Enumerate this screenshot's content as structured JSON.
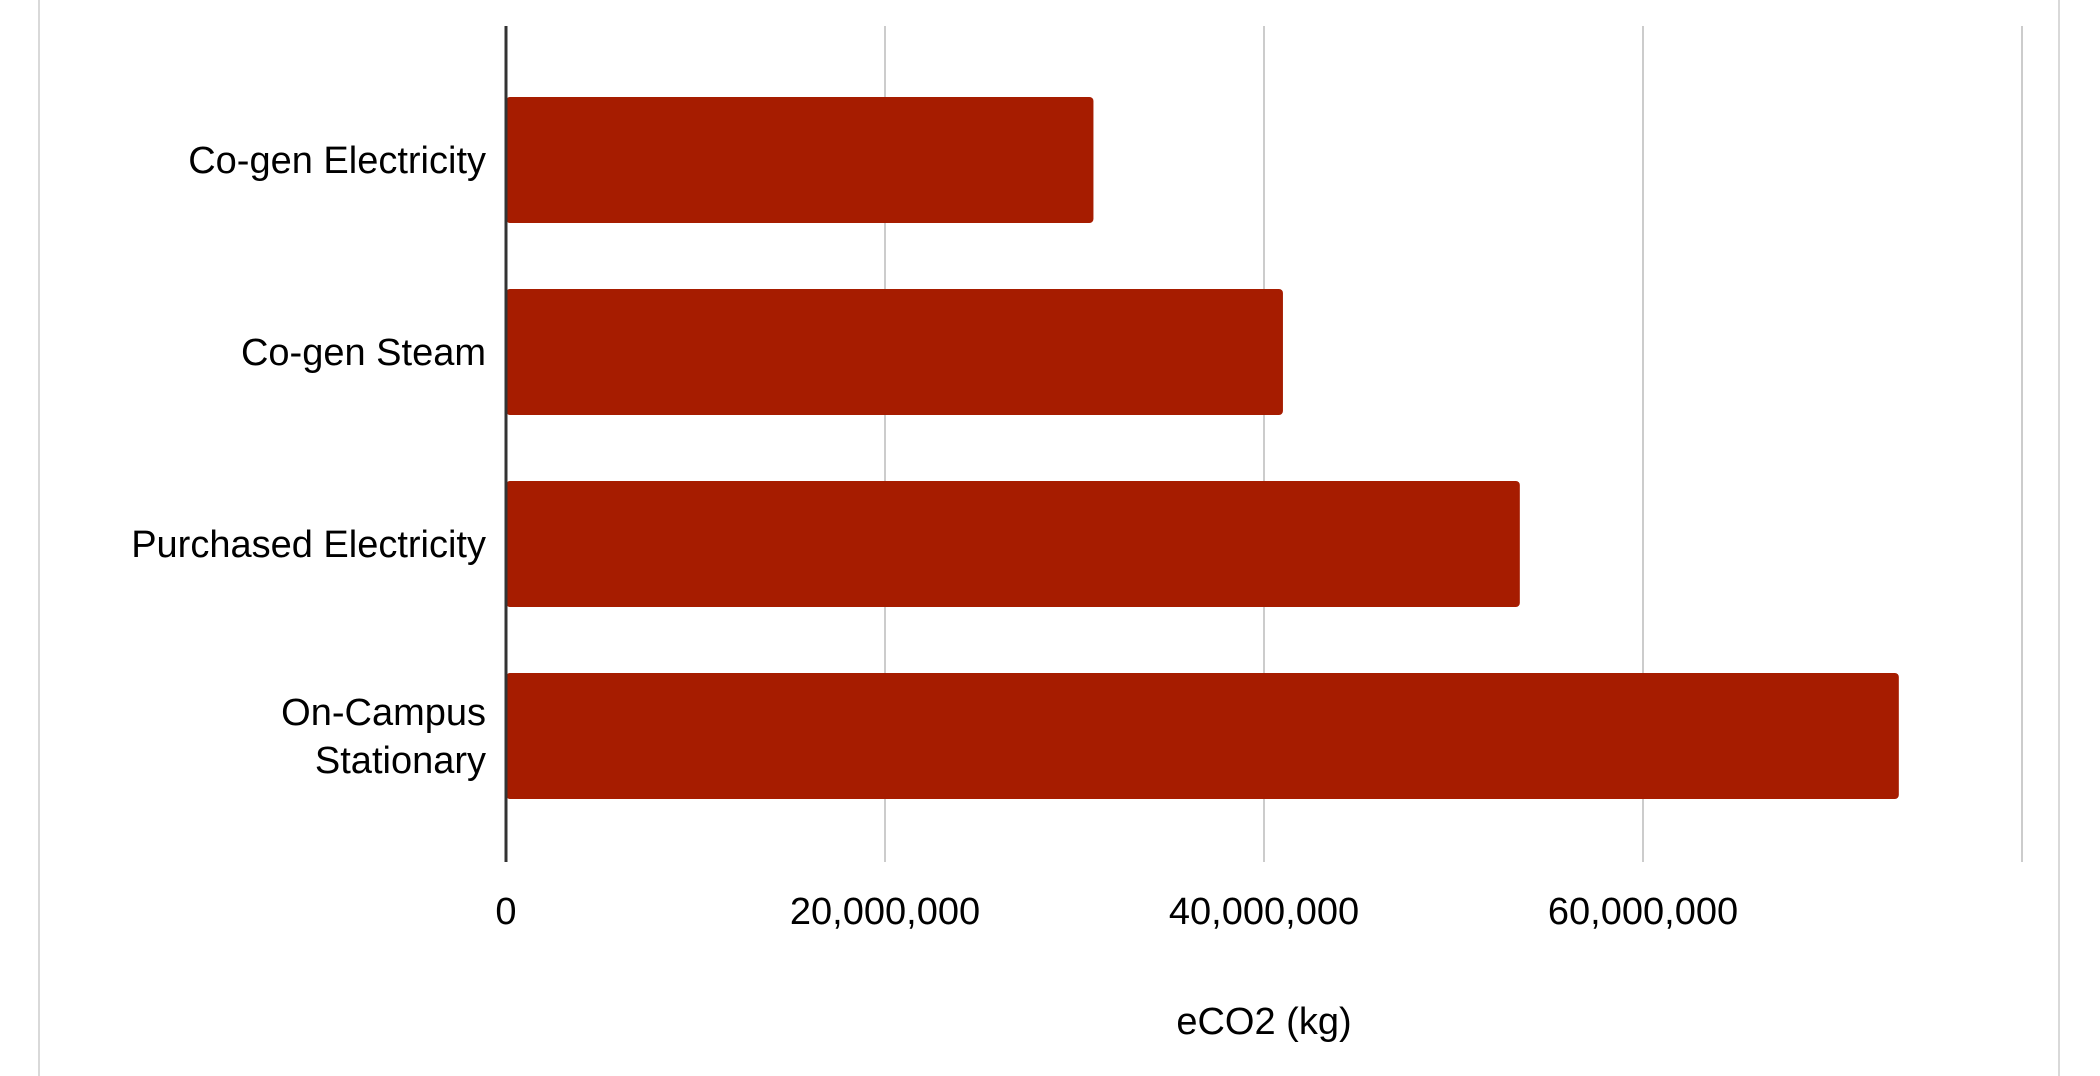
{
  "chart_data": {
    "type": "bar",
    "orientation": "horizontal",
    "categories": [
      "Co-gen Electricity",
      "Co-gen Steam",
      "Purchased Electricity",
      "On-Campus Stationary"
    ],
    "category_label_lines": [
      [
        "Co-gen Electricity"
      ],
      [
        "Co-gen Steam"
      ],
      [
        "Purchased Electricity"
      ],
      [
        "On-Campus",
        "Stationary"
      ]
    ],
    "values": [
      31000000,
      41000000,
      53500000,
      73500000
    ],
    "xlabel": "eCO2 (kg)",
    "ylabel": "",
    "title": "",
    "xlim": [
      0,
      80000000
    ],
    "xticks": [
      0,
      20000000,
      40000000,
      60000000,
      80000000
    ],
    "xtick_labels": [
      "0",
      "20,000,000",
      "40,000,000",
      "60,000,000",
      ""
    ],
    "grid": true,
    "bar_color": "#a61c00",
    "gridline_color": "#cccccc"
  }
}
